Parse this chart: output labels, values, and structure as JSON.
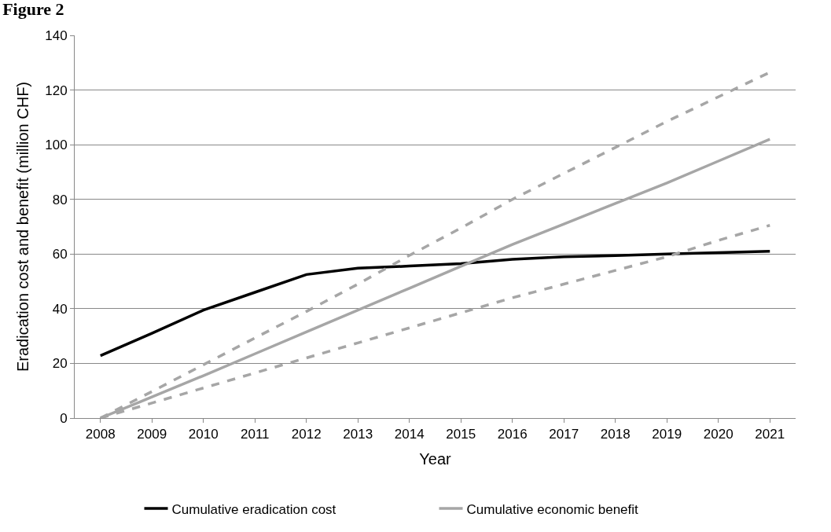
{
  "chart_data": {
    "type": "line",
    "title": "Figure 2",
    "xlabel": "Year",
    "ylabel": "Eradication cost and benefit (million CHF)",
    "categories": [
      "2008",
      "2009",
      "2010",
      "2011",
      "2012",
      "2013",
      "2014",
      "2015",
      "2016",
      "2017",
      "2018",
      "2019",
      "2020",
      "2021"
    ],
    "ylim": [
      0,
      140
    ],
    "yticks": [
      0,
      20,
      40,
      60,
      80,
      100,
      120,
      140
    ],
    "grid": "y",
    "legend": "bottom",
    "marker": "none",
    "series": [
      {
        "name": "Cumulative eradication cost",
        "color": "#000000",
        "line_style": "solid",
        "values": [
          22.8,
          31,
          39.5,
          46,
          52.5,
          54.8,
          55.6,
          56.5,
          58.1,
          59,
          59.4,
          60,
          60.5,
          61
        ]
      },
      {
        "name": "Cumulative economic benefit",
        "color": "#a6a6a6",
        "line_style": "solid",
        "values": [
          0,
          7.7,
          15.5,
          23.5,
          31.5,
          39.5,
          47.5,
          55.5,
          63.5,
          71,
          78.5,
          86,
          94,
          102
        ]
      },
      {
        "color": "#a6a6a6",
        "line_style": "dashed",
        "values": [
          0,
          9.7,
          19.5,
          29.3,
          39,
          49,
          59.5,
          69.5,
          80,
          89.5,
          99,
          108.5,
          117.5,
          126.5
        ]
      },
      {
        "color": "#a6a6a6",
        "line_style": "dashed",
        "values": [
          0,
          5.5,
          11,
          16.5,
          22,
          27.5,
          33,
          38.5,
          44,
          49,
          54,
          59,
          65,
          70.5
        ]
      }
    ]
  }
}
